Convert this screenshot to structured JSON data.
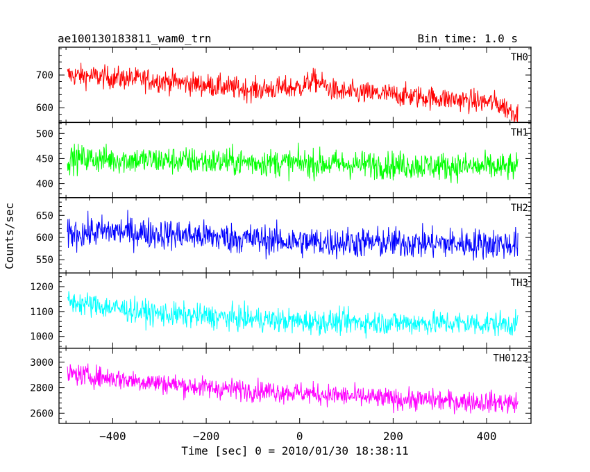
{
  "header": {
    "title": "ae100130183811_wam0_trn",
    "bin_time": "Bin time: 1.0 s"
  },
  "chart_data": {
    "type": "line",
    "title": "ae100130183811_wam0_trn",
    "xlabel": "Time [sec] 0 = 2010/01/30 18:38:11",
    "ylabel": "Counts/sec",
    "xlim": [
      -515,
      495
    ],
    "x_range": [
      -497,
      467
    ],
    "xticks": [
      -400,
      -200,
      0,
      200,
      400
    ],
    "xtick_labels": [
      "−400",
      "−200",
      "0",
      "200",
      "400"
    ],
    "grid": false,
    "panels": [
      {
        "name": "TH0",
        "color": "#ff0000",
        "ylim": [
          555,
          785
        ],
        "yticks": [
          600,
          700
        ],
        "trend": [
          [
            -497,
            700
          ],
          [
            -300,
            683
          ],
          [
            -100,
            655
          ],
          [
            0,
            662
          ],
          [
            30,
            685
          ],
          [
            80,
            648
          ],
          [
            200,
            640
          ],
          [
            420,
            615
          ],
          [
            467,
            580
          ]
        ],
        "noise": 25
      },
      {
        "name": "TH1",
        "color": "#00ff00",
        "ylim": [
          372,
          522
        ],
        "yticks": [
          400,
          450,
          500
        ],
        "trend": [
          [
            -497,
            450
          ],
          [
            467,
            432
          ]
        ],
        "noise": 20
      },
      {
        "name": "TH2",
        "color": "#0000ff",
        "ylim": [
          520,
          690
        ],
        "yticks": [
          550,
          600,
          650
        ],
        "trend": [
          [
            -497,
            608
          ],
          [
            -400,
            615
          ],
          [
            0,
            590
          ],
          [
            467,
            585
          ]
        ],
        "noise": 25
      },
      {
        "name": "TH3",
        "color": "#00ffff",
        "ylim": [
          953,
          1255
        ],
        "yticks": [
          1000,
          1100,
          1200
        ],
        "trend": [
          [
            -497,
            1140
          ],
          [
            -300,
            1090
          ],
          [
            0,
            1060
          ],
          [
            467,
            1050
          ]
        ],
        "noise": 35
      },
      {
        "name": "TH0123",
        "color": "#ff00ff",
        "ylim": [
          2520,
          3110
        ],
        "yticks": [
          2600,
          2800,
          3000
        ],
        "trend": [
          [
            -497,
            2910
          ],
          [
            -200,
            2800
          ],
          [
            0,
            2760
          ],
          [
            200,
            2710
          ],
          [
            467,
            2680
          ]
        ],
        "noise": 60
      }
    ]
  }
}
